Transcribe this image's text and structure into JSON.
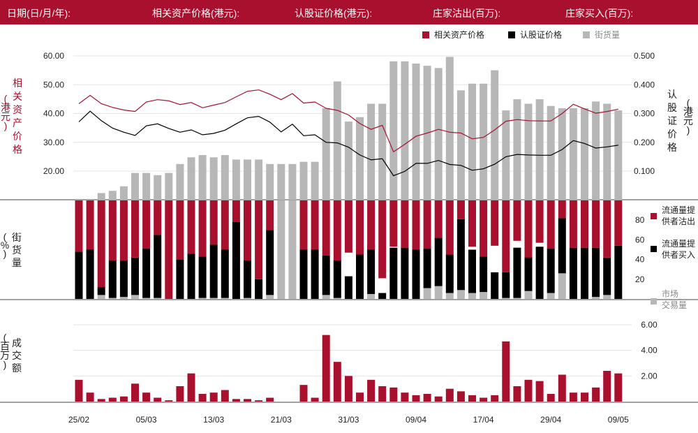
{
  "header": {
    "items": [
      "日期(日/月/年):",
      "相关资产价格(港元):",
      "认股证价格(港元):",
      "庄家沽出(百万):",
      "庄家买入(百万):"
    ]
  },
  "colors": {
    "brand": "#a8102e",
    "black": "#000000",
    "grey": "#b7b7b7"
  },
  "chart_data": [
    {
      "type": "line",
      "left_axis_label": [
        "相",
        "关",
        "资",
        "产",
        "价",
        "格"
      ],
      "left_axis_unit": [
        "(",
        "港",
        "元",
        ")"
      ],
      "right_axis_label": [
        "认",
        "股",
        "证",
        "价",
        "格"
      ],
      "right_axis_unit": [
        "(",
        "港",
        "元",
        ")"
      ],
      "left_ticks": [
        "60.00",
        "50.00",
        "40.00",
        "30.00",
        "20.00"
      ],
      "left_tick_values": [
        60,
        50,
        40,
        30,
        20
      ],
      "right_ticks": [
        "0.500",
        "0.400",
        "0.300",
        "0.200",
        "0.100"
      ],
      "right_tick_values": [
        0.5,
        0.4,
        0.3,
        0.2,
        0.1
      ],
      "ylim_left": [
        10,
        65
      ],
      "ylim_right": [
        0.0,
        0.55
      ],
      "legend": [
        "相关资产价格",
        "认股证价格",
        "街货量"
      ],
      "underlying_price": [
        43.4,
        46.3,
        43.4,
        42.1,
        41.2,
        40.7,
        44.0,
        44.8,
        44.4,
        43.1,
        43.8,
        42.0,
        42.9,
        43.8,
        45.8,
        47.7,
        48.2,
        46.7,
        44.8,
        46.9,
        43.6,
        44.0,
        41.8,
        41.1,
        39.5,
        36.5,
        34.5,
        35.9,
        26.7,
        29.3,
        32.1,
        33.2,
        34.5,
        33.5,
        33.2,
        31.2,
        31.7,
        34.3,
        37.3,
        37.9,
        37.5,
        37.4,
        37.4,
        40.0,
        43.2,
        41.6,
        40.1,
        40.7,
        41.5
      ],
      "warrant_price": [
        0.271,
        0.308,
        0.275,
        0.249,
        0.235,
        0.224,
        0.257,
        0.264,
        0.248,
        0.235,
        0.243,
        0.226,
        0.231,
        0.242,
        0.264,
        0.285,
        0.29,
        0.27,
        0.236,
        0.263,
        0.223,
        0.226,
        0.2,
        0.198,
        0.183,
        0.156,
        0.139,
        0.143,
        0.084,
        0.099,
        0.127,
        0.127,
        0.137,
        0.123,
        0.12,
        0.103,
        0.108,
        0.124,
        0.15,
        0.158,
        0.156,
        0.155,
        0.155,
        0.175,
        0.206,
        0.196,
        0.18,
        0.184,
        0.19
      ],
      "outstanding_pct": [
        0,
        0,
        3,
        4,
        6,
        12,
        12,
        11,
        12,
        16,
        19,
        20,
        19,
        20,
        18,
        18,
        18,
        16,
        16,
        16,
        17,
        17,
        41,
        53,
        35,
        37,
        43,
        43,
        62,
        62,
        61,
        60,
        59,
        64,
        49,
        52,
        52,
        58,
        40,
        45,
        43,
        45,
        42,
        41,
        41,
        41,
        44,
        43,
        40
      ]
    },
    {
      "type": "bar",
      "right_ticks": [
        "80",
        "60",
        "40",
        "20"
      ],
      "right_tick_values": [
        80,
        60,
        40,
        20
      ],
      "ylim": [
        0,
        100
      ],
      "left_axis_label": [
        "街",
        "货",
        "量"
      ],
      "left_axis_unit": [
        "(",
        "%",
        ")"
      ],
      "legend": [
        [
          "流通量提",
          "供者沽出"
        ],
        [
          "流通量提",
          "供者买入"
        ],
        [
          "市场",
          "交易量"
        ]
      ],
      "series": [
        {
          "name": "流通量提供者沽出",
          "values": [
            52,
            50,
            88,
            61,
            61,
            58,
            49,
            35,
            100,
            60,
            54,
            57,
            45,
            50,
            22,
            61,
            80,
            30,
            0,
            0,
            50,
            50,
            56,
            61,
            53,
            55,
            50,
            79,
            47,
            48,
            50,
            49,
            38,
            55,
            19,
            47,
            57,
            46,
            73,
            41,
            58,
            43,
            49,
            18,
            48,
            48,
            48,
            58,
            46
          ]
        },
        {
          "name": "流通量提供者买入",
          "values": [
            48,
            50,
            8,
            38,
            37,
            38,
            50,
            64,
            0,
            40,
            46,
            42,
            54,
            49,
            78,
            38,
            20,
            66,
            0,
            0,
            50,
            50,
            40,
            38,
            23,
            52,
            50,
            6,
            52,
            52,
            50,
            40,
            49,
            39,
            72,
            44,
            36,
            27,
            26,
            51,
            37,
            53,
            45,
            56,
            52,
            52,
            50,
            38,
            54
          ]
        },
        {
          "name": "市场交易量",
          "values": [
            0,
            0,
            4,
            1,
            2,
            4,
            1,
            1,
            0,
            0,
            0,
            1,
            1,
            1,
            0,
            1,
            0,
            4,
            100,
            100,
            0,
            0,
            4,
            1,
            0,
            0,
            5,
            0,
            0,
            0,
            0,
            11,
            13,
            6,
            9,
            6,
            7,
            0,
            1,
            1,
            8,
            0,
            6,
            26,
            0,
            0,
            2,
            4,
            0
          ]
        }
      ]
    },
    {
      "type": "bar",
      "left_axis_label": [
        "成",
        "交",
        "额"
      ],
      "left_axis_unit": [
        "(",
        "百",
        "万",
        ")"
      ],
      "right_ticks": [
        "6.00",
        "4.00",
        "2.00"
      ],
      "right_tick_values": [
        6,
        4,
        2
      ],
      "ylim": [
        0,
        6.5
      ],
      "x_tick_labels": [
        "25/02",
        "05/03",
        "13/03",
        "21/03",
        "31/03",
        "09/04",
        "17/04",
        "29/04",
        "09/05"
      ],
      "x_tick_indices": [
        0,
        6,
        12,
        18,
        24,
        30,
        36,
        42,
        48
      ],
      "values": [
        1.7,
        0.7,
        0.2,
        0.3,
        0.4,
        1.4,
        0.7,
        0.3,
        0.1,
        1.2,
        2.2,
        0.6,
        0.7,
        0.9,
        0.2,
        0.2,
        0.1,
        0.3,
        0.0,
        0.0,
        1.3,
        0.3,
        5.2,
        3.1,
        2.0,
        0.7,
        1.7,
        1.2,
        1.1,
        0.7,
        0.5,
        0.6,
        0.4,
        1.0,
        0.8,
        0.5,
        0.3,
        0.5,
        4.7,
        1.2,
        1.7,
        1.6,
        0.6,
        2.1,
        0.7,
        0.7,
        1.1,
        2.4,
        2.2
      ]
    }
  ]
}
